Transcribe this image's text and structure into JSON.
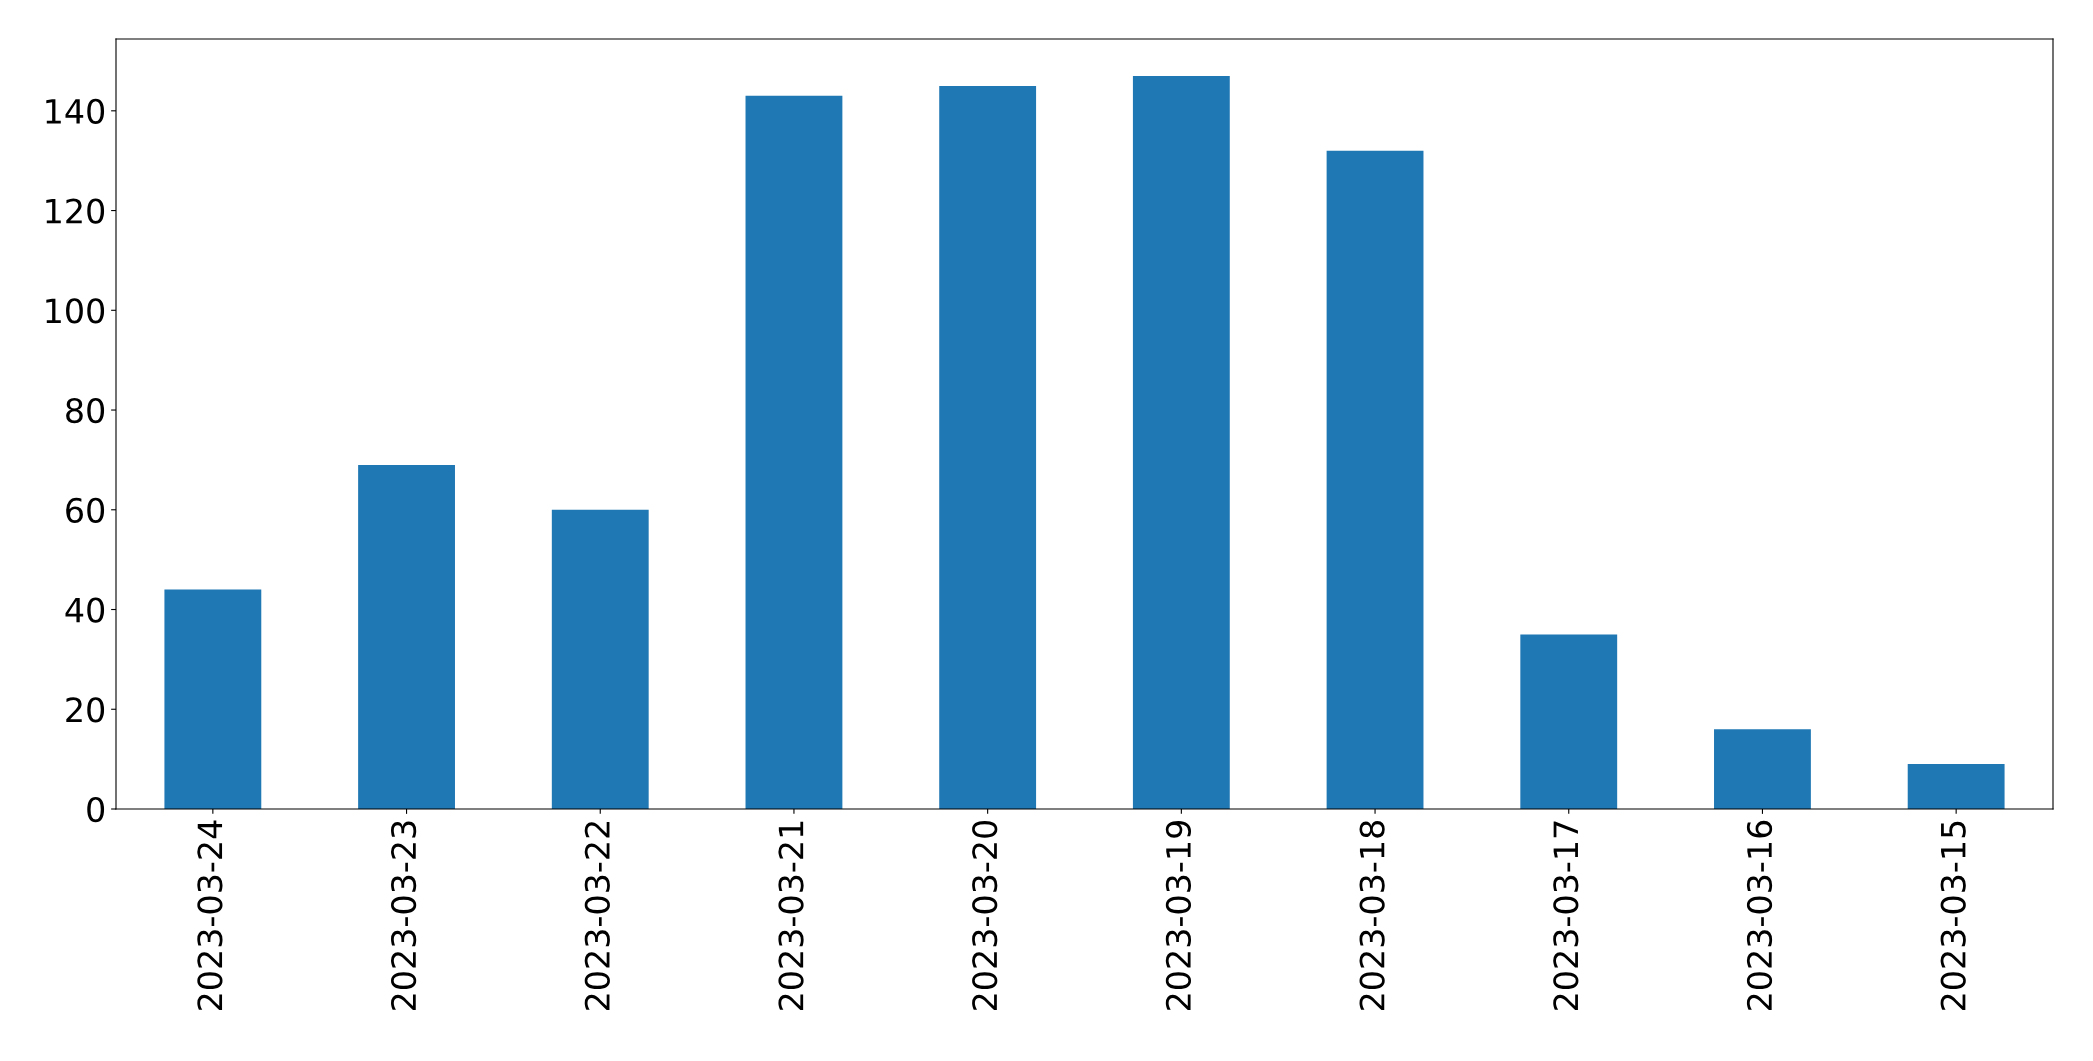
{
  "chart_data": {
    "type": "bar",
    "categories": [
      "2023-03-24",
      "2023-03-23",
      "2023-03-22",
      "2023-03-21",
      "2023-03-20",
      "2023-03-19",
      "2023-03-18",
      "2023-03-17",
      "2023-03-16",
      "2023-03-15"
    ],
    "values": [
      44,
      69,
      60,
      143,
      145,
      147,
      132,
      35,
      16,
      9
    ],
    "color": "#1f77b4",
    "ylim": [
      0,
      154.4
    ],
    "yticks": [
      0,
      20,
      40,
      60,
      80,
      100,
      120,
      140
    ],
    "grid": false,
    "legend": false
  }
}
